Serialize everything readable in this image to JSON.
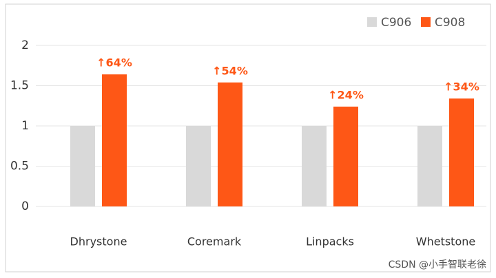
{
  "chart_data": {
    "type": "bar",
    "categories": [
      "Dhrystone",
      "Coremark",
      "Linpacks",
      "Whetstone"
    ],
    "series": [
      {
        "name": "C906",
        "color": "#d9d9d9",
        "values": [
          1,
          1,
          1,
          1
        ]
      },
      {
        "name": "C908",
        "color": "#fe5716",
        "values": [
          1.64,
          1.54,
          1.24,
          1.34
        ]
      }
    ],
    "annotations": [
      "↑64%",
      "↑54%",
      "↑24%",
      "↑34%"
    ],
    "ylim": [
      0,
      2
    ],
    "yticks": [
      0,
      0.5,
      1,
      1.5,
      2
    ],
    "grid": true,
    "legend": "top-right",
    "watermark": "CSDN @小手智联老徐"
  }
}
